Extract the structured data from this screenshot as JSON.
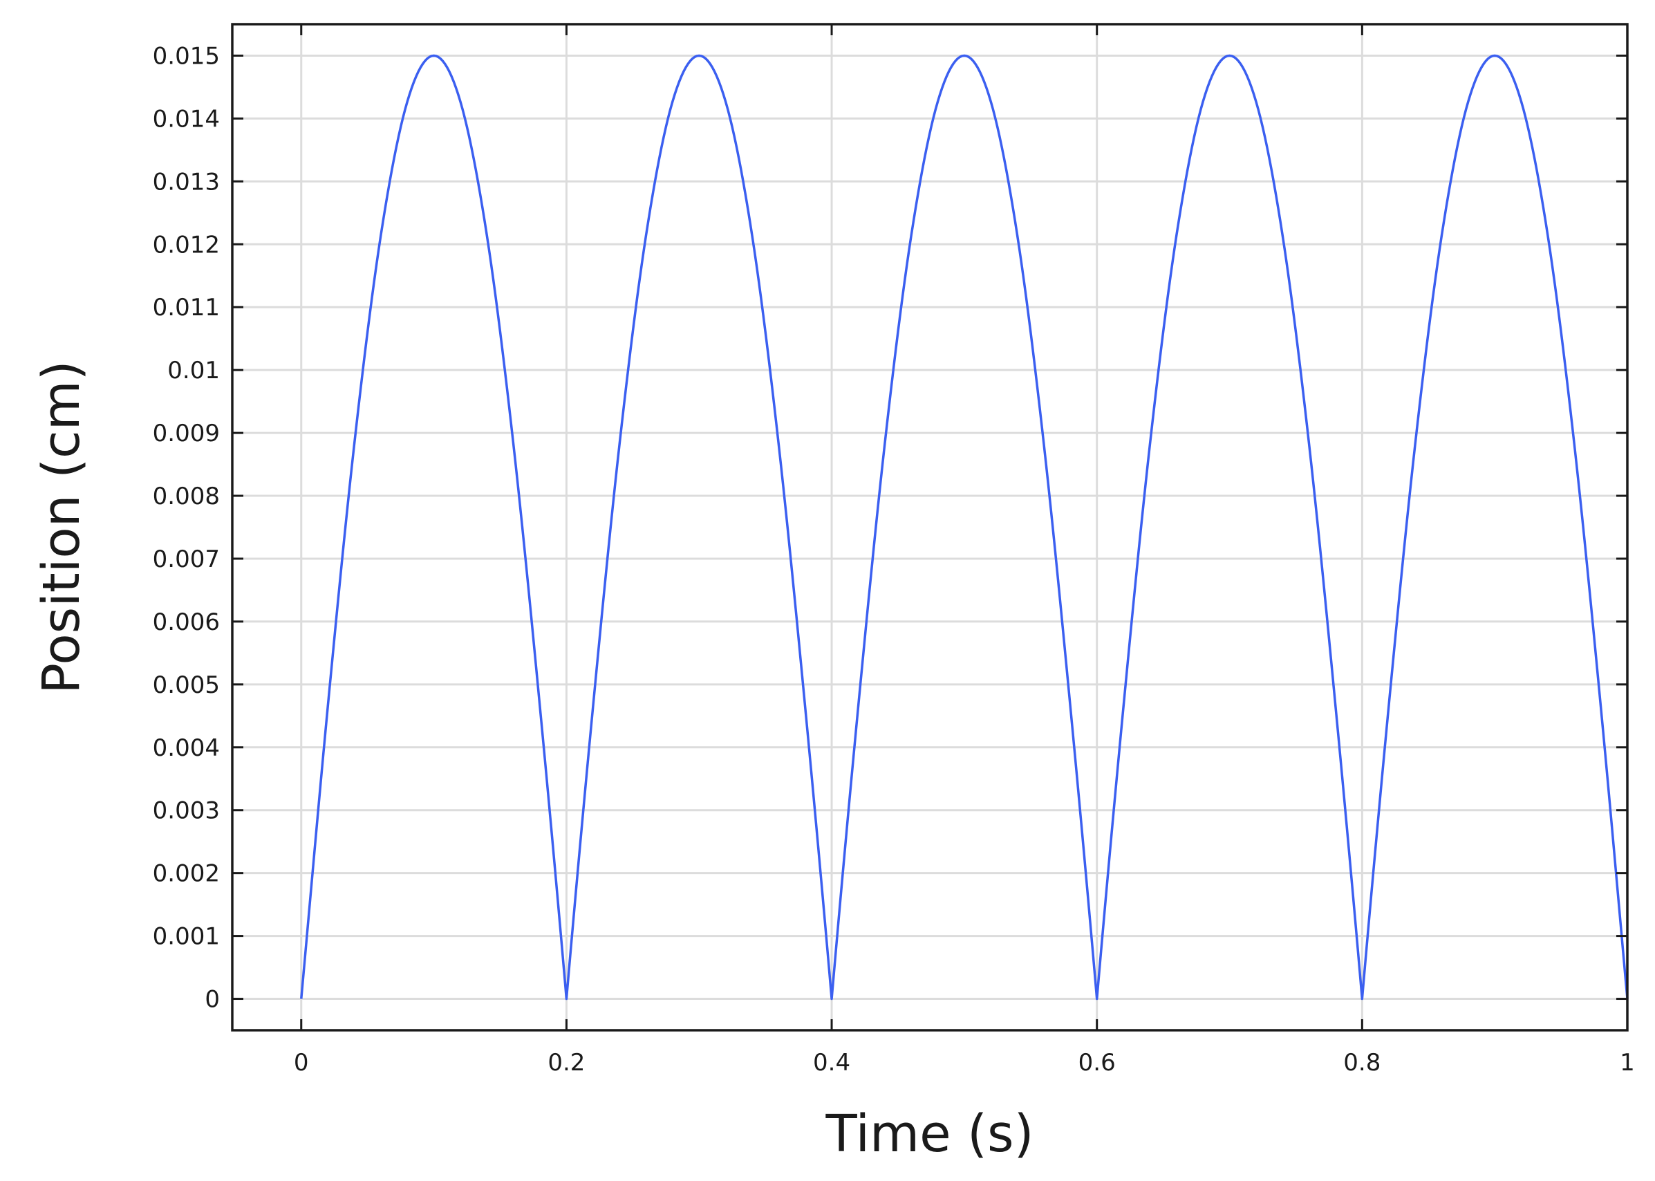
{
  "chart_data": {
    "type": "line",
    "xlabel": "Time (s)",
    "ylabel": "Position (cm)",
    "xlim": [
      -0.052,
      1.0
    ],
    "ylim": [
      -0.0005,
      0.0155
    ],
    "x_ticks": [
      0,
      0.2,
      0.4,
      0.6,
      0.8,
      1
    ],
    "x_tick_labels": [
      "0",
      "0.2",
      "0.4",
      "0.6",
      "0.8",
      "1"
    ],
    "y_ticks": [
      0,
      0.001,
      0.002,
      0.003,
      0.004,
      0.005,
      0.006,
      0.007,
      0.008,
      0.009,
      0.01,
      0.011,
      0.012,
      0.013,
      0.014,
      0.015
    ],
    "y_tick_labels": [
      "0",
      "0.001",
      "0.002",
      "0.003",
      "0.004",
      "0.005",
      "0.006",
      "0.007",
      "0.008",
      "0.009",
      "0.01",
      "0.011",
      "0.012",
      "0.013",
      "0.014",
      "0.015"
    ],
    "grid": true,
    "line_color": "#3b5ff0",
    "series": [
      {
        "x": [
          0,
          0.02,
          0.04,
          0.06,
          0.08,
          0.1,
          0.12,
          0.14,
          0.16,
          0.18,
          0.2,
          0.22,
          0.24,
          0.26,
          0.28,
          0.3,
          0.32,
          0.34,
          0.36,
          0.38,
          0.4,
          0.42,
          0.44,
          0.46,
          0.48,
          0.5,
          0.52,
          0.54,
          0.56,
          0.58,
          0.6,
          0.62,
          0.64,
          0.66,
          0.68,
          0.7,
          0.72,
          0.74,
          0.76,
          0.78,
          0.8,
          0.82,
          0.84,
          0.86,
          0.88,
          0.9,
          0.92,
          0.94,
          0.96,
          0.98,
          1.0
        ],
        "values": [
          0,
          0.00464,
          0.00882,
          0.01214,
          0.01427,
          0.015,
          0.01427,
          0.01214,
          0.00882,
          0.00464,
          0,
          0.00464,
          0.00882,
          0.01214,
          0.01427,
          0.015,
          0.01427,
          0.01214,
          0.00882,
          0.00464,
          0,
          0.00464,
          0.00882,
          0.01214,
          0.01427,
          0.015,
          0.01427,
          0.01214,
          0.00882,
          0.00464,
          0,
          0.00464,
          0.00882,
          0.01214,
          0.01427,
          0.015,
          0.01427,
          0.01214,
          0.00882,
          0.00464,
          0,
          0.00464,
          0.00882,
          0.01214,
          0.01427,
          0.015,
          0.01427,
          0.01214,
          0.00882,
          0.00464,
          0
        ]
      }
    ]
  }
}
